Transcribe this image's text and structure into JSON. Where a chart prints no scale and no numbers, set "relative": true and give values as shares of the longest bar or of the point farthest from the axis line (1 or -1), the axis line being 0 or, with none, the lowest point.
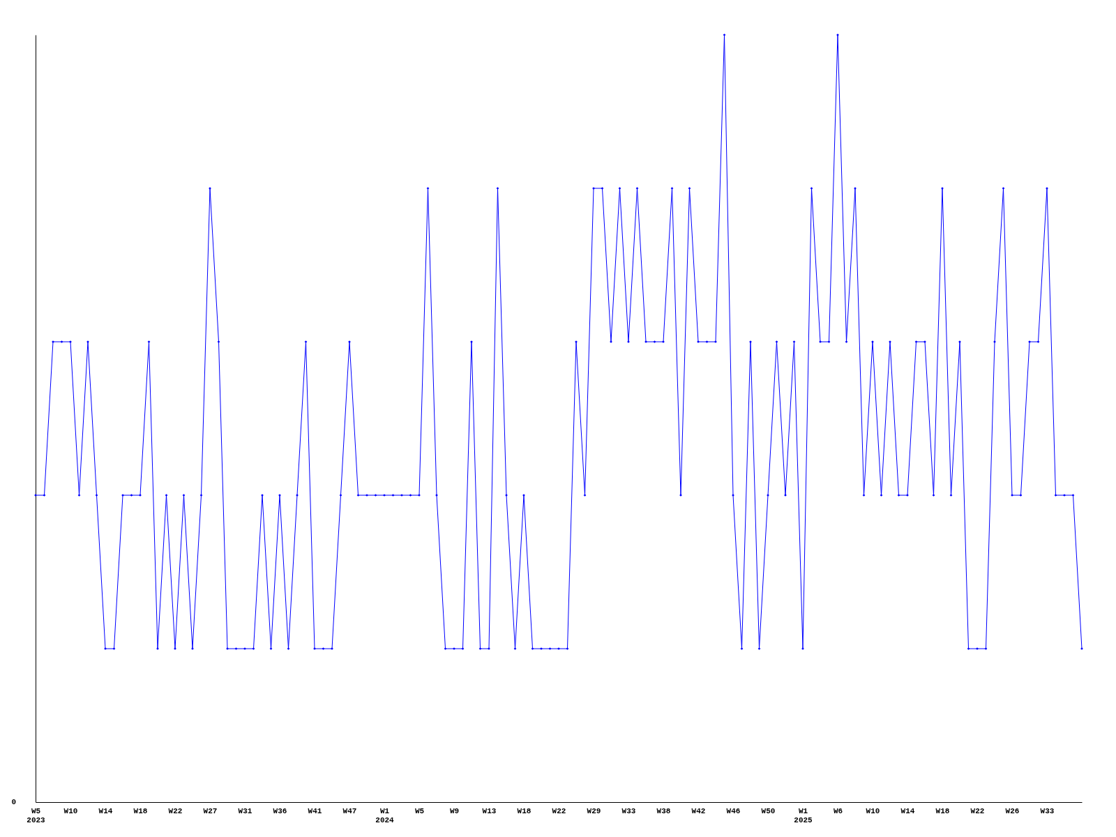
{
  "chart_data": {
    "type": "line",
    "relative": true,
    "marker": "diamond",
    "line_style": "solid",
    "grid": false,
    "annotations": [
      "0"
    ],
    "categories": [
      "W5\n2023",
      null,
      null,
      null,
      "W10",
      null,
      null,
      null,
      "W14",
      null,
      null,
      null,
      "W18",
      null,
      null,
      null,
      "W22",
      null,
      null,
      null,
      "W27",
      null,
      null,
      null,
      "W31",
      null,
      null,
      null,
      "W36",
      null,
      null,
      null,
      "W41",
      null,
      null,
      null,
      "W47",
      null,
      null,
      null,
      "W1\n2024",
      null,
      null,
      null,
      "W5",
      null,
      null,
      null,
      "W9",
      null,
      null,
      null,
      "W13",
      null,
      null,
      null,
      "W18",
      null,
      null,
      null,
      "W22",
      null,
      null,
      null,
      "W29",
      null,
      null,
      null,
      "W33",
      null,
      null,
      null,
      "W38",
      null,
      null,
      null,
      "W42",
      null,
      null,
      null,
      "W46",
      null,
      null,
      null,
      "W50",
      null,
      null,
      null,
      "W1\n2025",
      null,
      null,
      null,
      "W6",
      null,
      null,
      null,
      "W10",
      null,
      null,
      null,
      "W14",
      null,
      null,
      null,
      "W18",
      null,
      null,
      null,
      "W22",
      null,
      null,
      null,
      "W26",
      null,
      null,
      null,
      "W33",
      null,
      null,
      null,
      null
    ],
    "series": [
      {
        "color": "#0000ff",
        "values": [
          0.4,
          0.4,
          0.6,
          0.6,
          0.6,
          0.4,
          0.6,
          0.4,
          0.2,
          0.2,
          0.4,
          0.4,
          0.4,
          0.6,
          0.2,
          0.4,
          0.2,
          0.4,
          0.2,
          0.4,
          0.8,
          0.6,
          0.2,
          0.2,
          0.2,
          0.2,
          0.4,
          0.2,
          0.4,
          0.2,
          0.4,
          0.6,
          0.2,
          0.2,
          0.2,
          0.4,
          0.6,
          0.4,
          0.4,
          0.4,
          0.4,
          0.4,
          0.4,
          0.4,
          0.4,
          0.8,
          0.4,
          0.2,
          0.2,
          0.2,
          0.6,
          0.2,
          0.2,
          0.8,
          0.4,
          0.2,
          0.4,
          0.2,
          0.2,
          0.2,
          0.2,
          0.2,
          0.6,
          0.4,
          0.8,
          0.8,
          0.6,
          0.8,
          0.6,
          0.8,
          0.6,
          0.6,
          0.6,
          0.8,
          0.4,
          0.8,
          0.6,
          0.6,
          0.6,
          1,
          0.4,
          0.2,
          0.6,
          0.2,
          0.4,
          0.6,
          0.4,
          0.6,
          0.2,
          0.8,
          0.6,
          0.6,
          1,
          0.6,
          0.8,
          0.4,
          0.6,
          0.4,
          0.6,
          0.4,
          0.4,
          0.6,
          0.6,
          0.4,
          0.8,
          0.4,
          0.6,
          0.2,
          0.2,
          0.2,
          0.6,
          0.8,
          0.4,
          0.4,
          0.6,
          0.6,
          0.8,
          0.4,
          0.4,
          0.4,
          0.2
        ]
      }
    ]
  }
}
